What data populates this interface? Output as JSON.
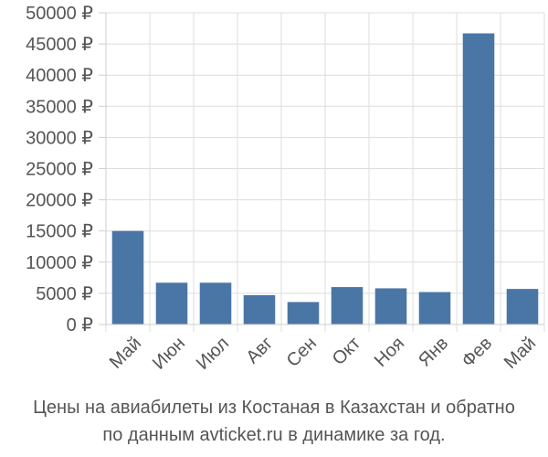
{
  "chart_data": {
    "type": "bar",
    "categories": [
      "Май",
      "Июн",
      "Июл",
      "Авг",
      "Сен",
      "Окт",
      "Ноя",
      "Янв",
      "Фев",
      "Май"
    ],
    "values": [
      15000,
      6700,
      6700,
      4700,
      3600,
      6000,
      5800,
      5200,
      46700,
      5700
    ],
    "ylim": [
      0,
      50000
    ],
    "yticks": [
      0,
      5000,
      10000,
      15000,
      20000,
      25000,
      30000,
      35000,
      40000,
      45000,
      50000
    ],
    "y_unit": "₽",
    "grid": true,
    "bar_color": "#4a76a6"
  },
  "caption": {
    "line1": "Цены на авиабилеты из Костаная в Казахстан и обратно",
    "line2": "по данным avticket.ru в динамике за год."
  }
}
